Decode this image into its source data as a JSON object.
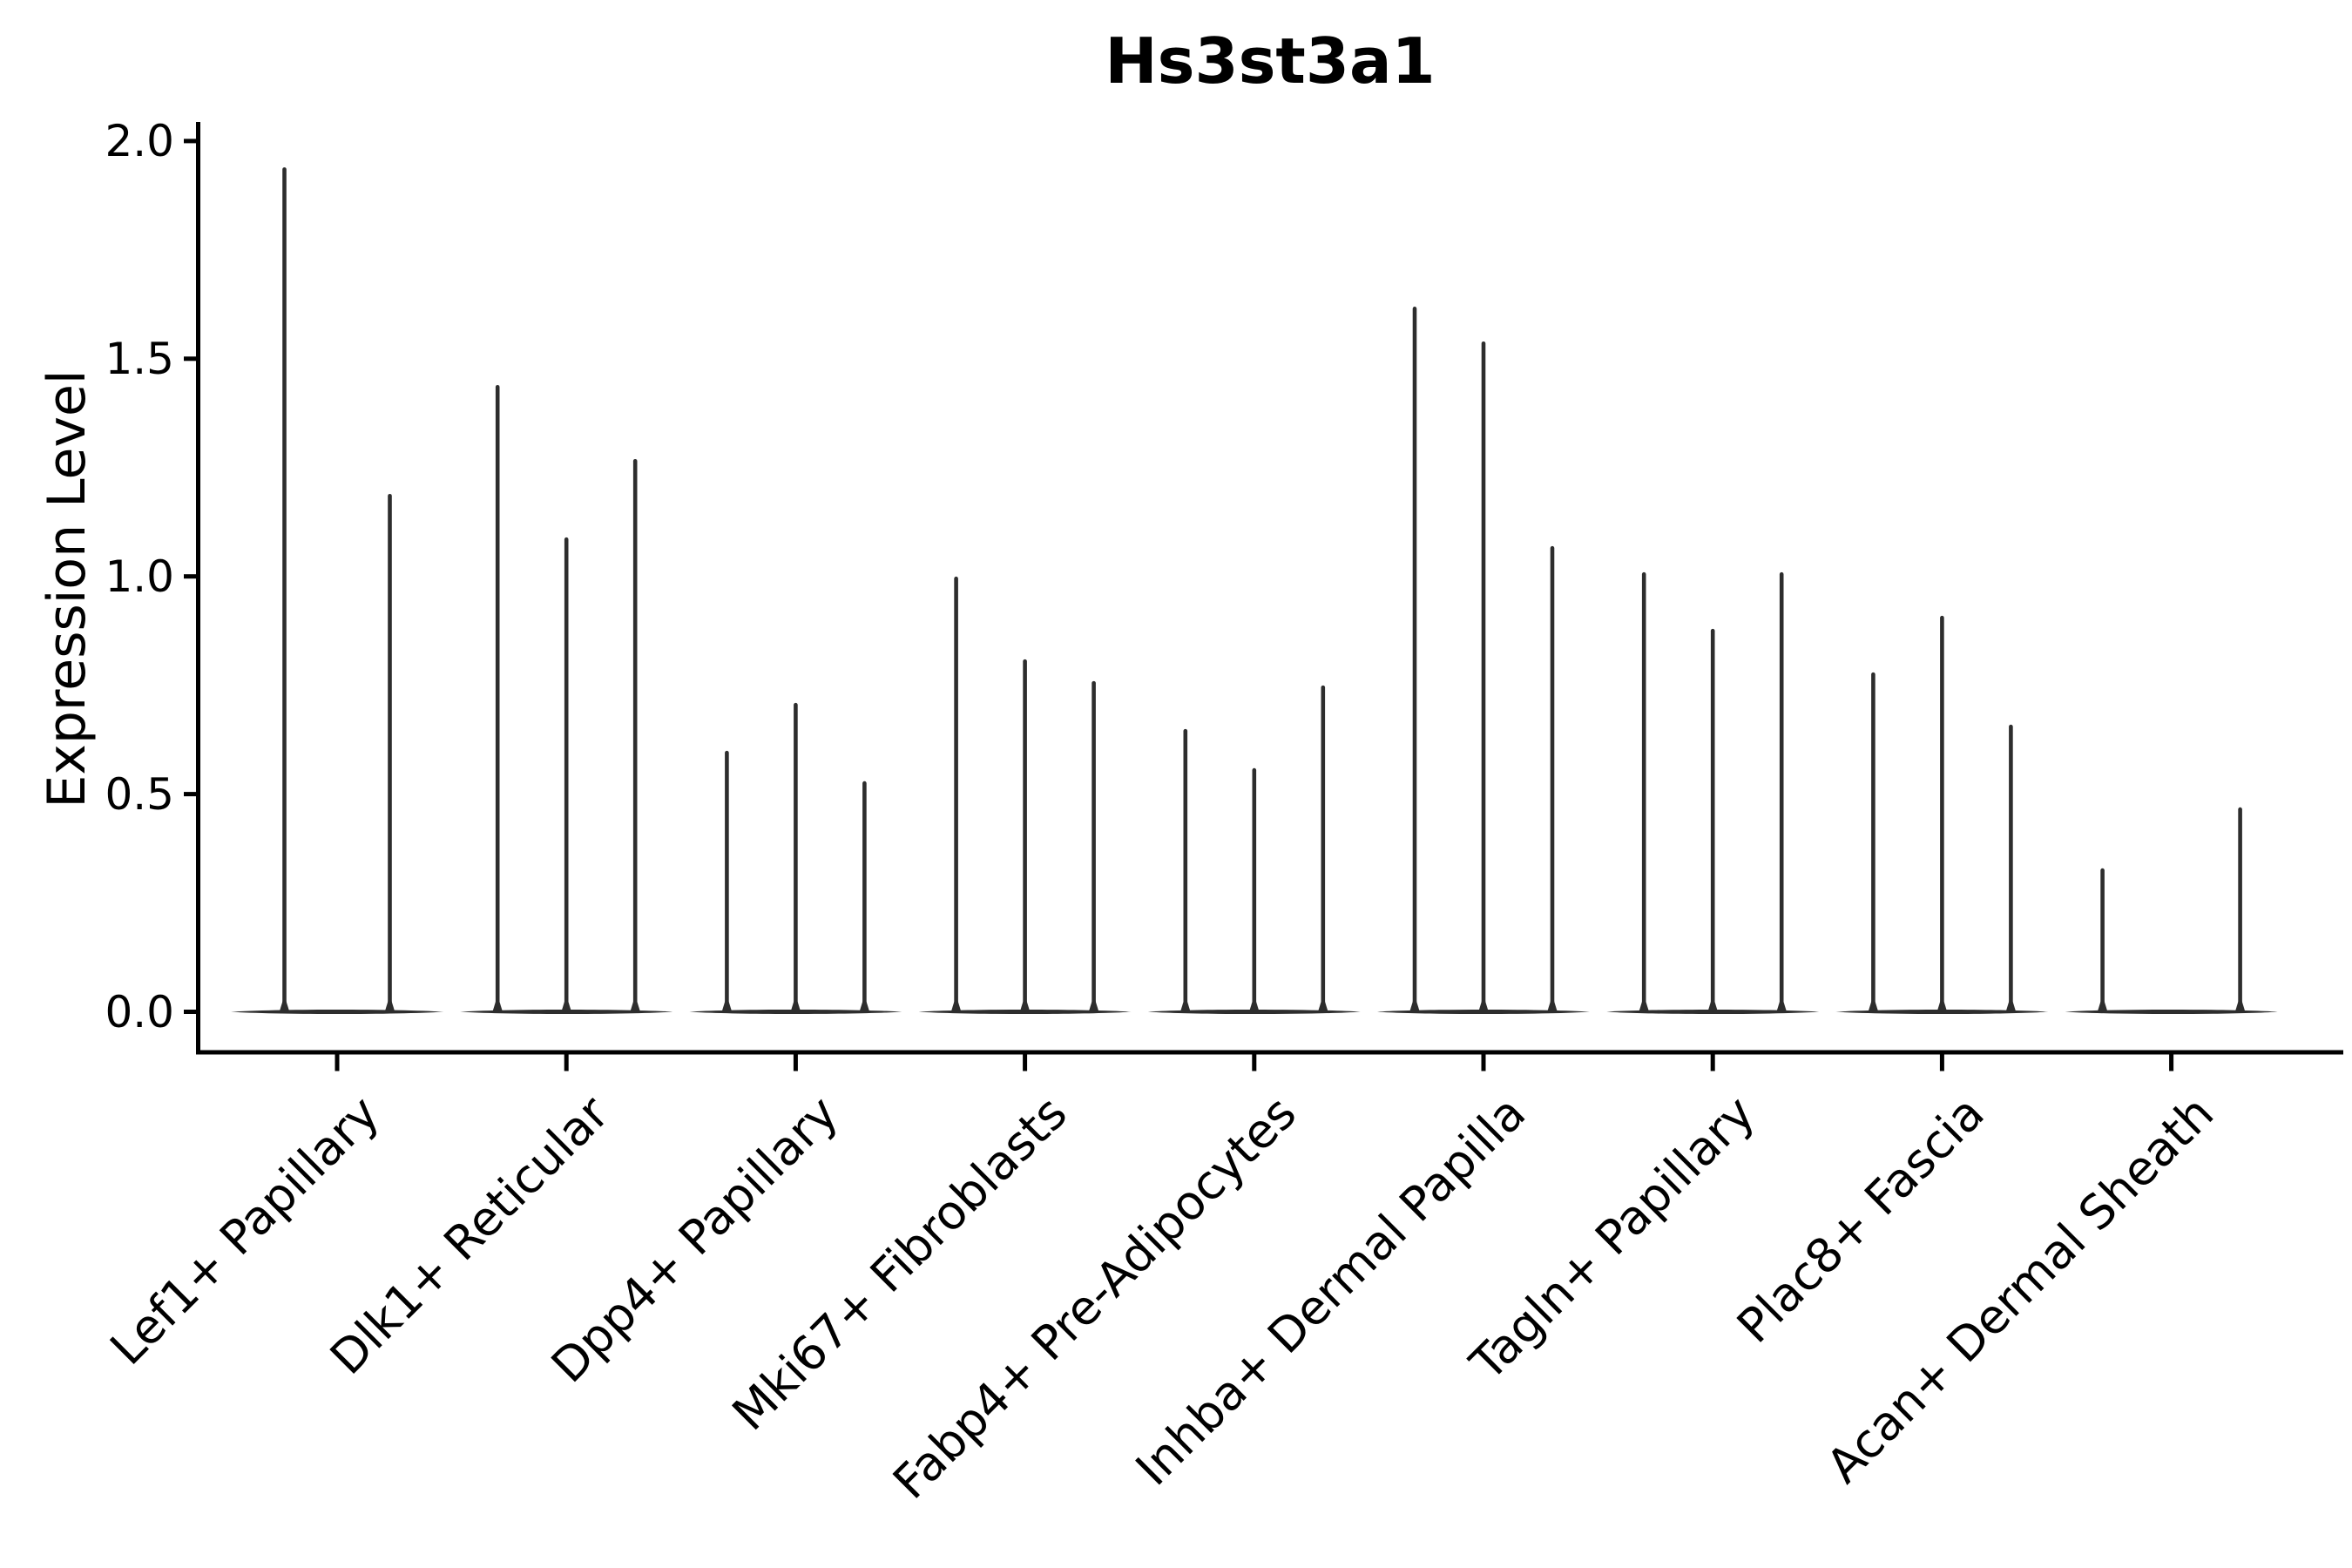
{
  "title": "Hs3st3a1",
  "ylabel": "Expression Level",
  "colors": {
    "violin": "#2d2d2d",
    "axis": "#000000",
    "text": "#000000",
    "background": "#ffffff"
  },
  "chart_data": {
    "type": "violin",
    "title": "Hs3st3a1",
    "xlabel": "",
    "ylabel": "Expression Level",
    "ylim": [
      -0.06,
      2.05
    ],
    "yticks": [
      0.0,
      0.5,
      1.0,
      1.5,
      2.0
    ],
    "ytick_labels": [
      "0.0",
      "0.5",
      "1.0",
      "1.5",
      "2.0"
    ],
    "grid": false,
    "legend_position": "none",
    "note": "Collapsed violins: mass at 0 (flat lens at baseline) with a thin spike up to each group's maximum expression value",
    "categories": [
      "Lef1+ Papillary",
      "Dlk1+ Reticular",
      "Dpp4+ Papillary",
      "Mki67+ Fibroblasts",
      "Fabp4+ Pre-Adipocytes",
      "Inhba+ Dermal Papilla",
      "Tagln+ Papillary",
      "Plac8+ Fascia",
      "Acan+ Dermal Sheath"
    ],
    "series": [
      {
        "category": "Lef1+ Papillary",
        "violin_maxima": [
          1.94,
          1.19
        ]
      },
      {
        "category": "Dlk1+ Reticular",
        "violin_maxima": [
          1.44,
          1.09,
          1.27
        ]
      },
      {
        "category": "Dpp4+ Papillary",
        "violin_maxima": [
          0.6,
          0.71,
          0.53
        ]
      },
      {
        "category": "Mki67+ Fibroblasts",
        "violin_maxima": [
          1.0,
          0.81,
          0.76
        ]
      },
      {
        "category": "Fabp4+ Pre-Adipocytes",
        "violin_maxima": [
          0.65,
          0.56,
          0.75
        ]
      },
      {
        "category": "Inhba+ Dermal Papilla",
        "violin_maxima": [
          1.62,
          1.54,
          1.07
        ]
      },
      {
        "category": "Tagln+ Papillary",
        "violin_maxima": [
          1.01,
          0.88,
          1.01
        ]
      },
      {
        "category": "Plac8+ Fascia",
        "violin_maxima": [
          0.78,
          0.91,
          0.66
        ]
      },
      {
        "category": "Acan+ Dermal Sheath",
        "violin_maxima": [
          0.33,
          0.0,
          0.47
        ]
      }
    ]
  }
}
